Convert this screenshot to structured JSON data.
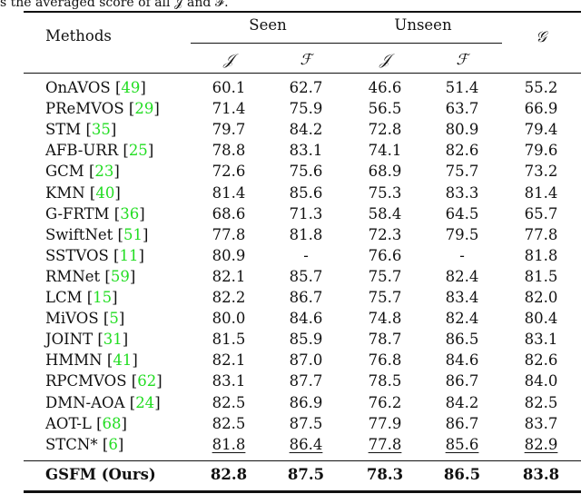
{
  "caption_fragment": "s the averaged score of all 𝒥 and ℱ.",
  "header": {
    "methods": "Methods",
    "seen": "Seen",
    "unseen": "Unseen",
    "g": "𝒢",
    "sub": [
      "𝒥",
      "ℱ",
      "𝒥",
      "ℱ"
    ]
  },
  "ref_color": "#22dd22",
  "rows": [
    {
      "method": "OnAVOS",
      "ref": "49",
      "values": [
        "60.1",
        "62.7",
        "46.6",
        "51.4",
        "55.2"
      ]
    },
    {
      "method": "PReMVOS",
      "ref": "29",
      "values": [
        "71.4",
        "75.9",
        "56.5",
        "63.7",
        "66.9"
      ]
    },
    {
      "method": "STM",
      "ref": "35",
      "values": [
        "79.7",
        "84.2",
        "72.8",
        "80.9",
        "79.4"
      ]
    },
    {
      "method": "AFB-URR",
      "ref": "25",
      "values": [
        "78.8",
        "83.1",
        "74.1",
        "82.6",
        "79.6"
      ]
    },
    {
      "method": "GCM",
      "ref": "23",
      "values": [
        "72.6",
        "75.6",
        "68.9",
        "75.7",
        "73.2"
      ]
    },
    {
      "method": "KMN",
      "ref": "40",
      "values": [
        "81.4",
        "85.6",
        "75.3",
        "83.3",
        "81.4"
      ]
    },
    {
      "method": "G-FRTM",
      "ref": "36",
      "values": [
        "68.6",
        "71.3",
        "58.4",
        "64.5",
        "65.7"
      ]
    },
    {
      "method": "SwiftNet",
      "ref": "51",
      "values": [
        "77.8",
        "81.8",
        "72.3",
        "79.5",
        "77.8"
      ]
    },
    {
      "method": "SSTVOS",
      "ref": "11",
      "values": [
        "80.9",
        "-",
        "76.6",
        "-",
        "81.8"
      ]
    },
    {
      "method": "RMNet",
      "ref": "59",
      "values": [
        "82.1",
        "85.7",
        "75.7",
        "82.4",
        "81.5"
      ]
    },
    {
      "method": "LCM",
      "ref": "15",
      "values": [
        "82.2",
        "86.7",
        "75.7",
        "83.4",
        "82.0"
      ]
    },
    {
      "method": "MiVOS",
      "ref": "5",
      "values": [
        "80.0",
        "84.6",
        "74.8",
        "82.4",
        "80.4"
      ]
    },
    {
      "method": "JOINT",
      "ref": "31",
      "values": [
        "81.5",
        "85.9",
        "78.7",
        "86.5",
        "83.1"
      ]
    },
    {
      "method": "HMMN",
      "ref": "41",
      "values": [
        "82.1",
        "87.0",
        "76.8",
        "84.6",
        "82.6"
      ]
    },
    {
      "method": "RPCMVOS",
      "ref": "62",
      "values": [
        "83.1",
        "87.7",
        "78.5",
        "86.7",
        "84.0"
      ]
    },
    {
      "method": "DMN-AOA",
      "ref": "24",
      "values": [
        "82.5",
        "86.9",
        "76.2",
        "84.2",
        "82.5"
      ]
    },
    {
      "method": "AOT-L",
      "ref": "68",
      "values": [
        "82.5",
        "87.5",
        "77.9",
        "86.7",
        "83.7"
      ]
    },
    {
      "method": "STCN*",
      "ref": "6",
      "values": [
        "81.8",
        "86.4",
        "77.8",
        "85.6",
        "82.9"
      ],
      "underline": true
    }
  ],
  "ours": {
    "method": "GSFM (Ours)",
    "values": [
      "82.8",
      "87.5",
      "78.3",
      "86.5",
      "83.8"
    ]
  }
}
